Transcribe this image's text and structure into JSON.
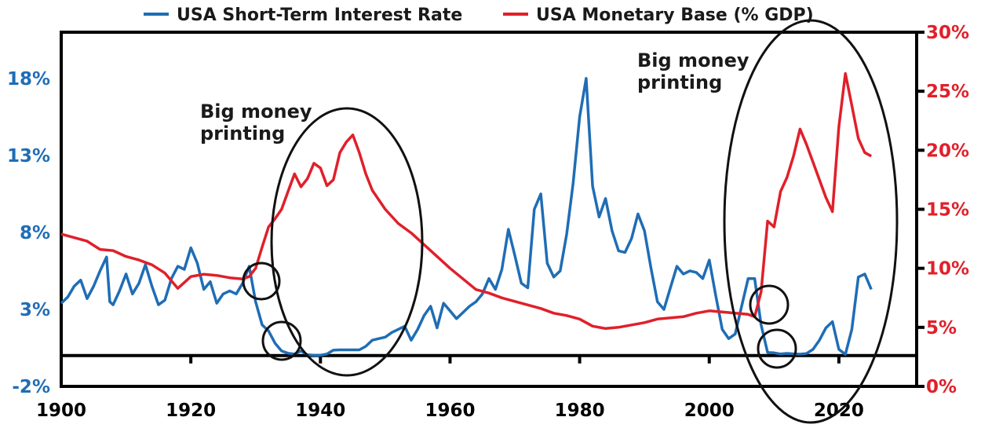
{
  "chart_data": {
    "type": "line",
    "title": "",
    "legend_position": "top",
    "grid": false,
    "xlim": [
      1900,
      2032
    ],
    "x_ticks": [
      1900,
      1920,
      1940,
      1960,
      1980,
      2000,
      2020
    ],
    "x_tick_labels": [
      "1900",
      "1920",
      "1940",
      "1960",
      "1980",
      "2000",
      "2020"
    ],
    "y_left": {
      "lim": [
        -2,
        21
      ],
      "ticks": [
        -2,
        3,
        8,
        13,
        18
      ],
      "tick_labels": [
        "-2%",
        "3%",
        "8%",
        "13%",
        "18%"
      ],
      "color": "#1f6db5"
    },
    "y_right": {
      "lim": [
        0,
        30
      ],
      "ticks": [
        0,
        5,
        10,
        15,
        20,
        25,
        30
      ],
      "tick_labels": [
        "0%",
        "5%",
        "10%",
        "15%",
        "20%",
        "25%",
        "30%"
      ],
      "color": "#e0202a"
    },
    "series": [
      {
        "name": "USA Short-Term Interest Rate",
        "axis": "left",
        "color": "#1f6db5",
        "points": [
          [
            1900,
            3.4
          ],
          [
            1901,
            3.8
          ],
          [
            1902,
            4.5
          ],
          [
            1903,
            4.9
          ],
          [
            1904,
            3.7
          ],
          [
            1905,
            4.5
          ],
          [
            1906,
            5.5
          ],
          [
            1907,
            6.4
          ],
          [
            1907.5,
            3.5
          ],
          [
            1908,
            3.3
          ],
          [
            1909,
            4.2
          ],
          [
            1910,
            5.3
          ],
          [
            1911,
            4.0
          ],
          [
            1912,
            4.7
          ],
          [
            1913,
            5.9
          ],
          [
            1914,
            4.5
          ],
          [
            1915,
            3.3
          ],
          [
            1916,
            3.6
          ],
          [
            1917,
            5.0
          ],
          [
            1918,
            5.8
          ],
          [
            1919,
            5.6
          ],
          [
            1920,
            7.0
          ],
          [
            1921,
            6.0
          ],
          [
            1922,
            4.3
          ],
          [
            1923,
            4.8
          ],
          [
            1924,
            3.4
          ],
          [
            1925,
            4.0
          ],
          [
            1926,
            4.2
          ],
          [
            1927,
            4.0
          ],
          [
            1928,
            4.7
          ],
          [
            1929,
            5.8
          ],
          [
            1930,
            3.5
          ],
          [
            1931,
            2.0
          ],
          [
            1932,
            1.6
          ],
          [
            1933,
            0.8
          ],
          [
            1934,
            0.3
          ],
          [
            1935,
            0.15
          ],
          [
            1936,
            0.1
          ],
          [
            1937,
            0.3
          ],
          [
            1938,
            0.05
          ],
          [
            1939,
            0.02
          ],
          [
            1940,
            0.02
          ],
          [
            1941,
            0.1
          ],
          [
            1942,
            0.35
          ],
          [
            1943,
            0.37
          ],
          [
            1944,
            0.37
          ],
          [
            1945,
            0.37
          ],
          [
            1946,
            0.37
          ],
          [
            1947,
            0.6
          ],
          [
            1948,
            1.0
          ],
          [
            1949,
            1.1
          ],
          [
            1950,
            1.2
          ],
          [
            1951,
            1.5
          ],
          [
            1952,
            1.7
          ],
          [
            1953,
            1.9
          ],
          [
            1954,
            1.0
          ],
          [
            1955,
            1.7
          ],
          [
            1956,
            2.6
          ],
          [
            1957,
            3.2
          ],
          [
            1958,
            1.8
          ],
          [
            1959,
            3.4
          ],
          [
            1960,
            2.9
          ],
          [
            1961,
            2.4
          ],
          [
            1962,
            2.8
          ],
          [
            1963,
            3.2
          ],
          [
            1964,
            3.5
          ],
          [
            1965,
            4.0
          ],
          [
            1966,
            5.0
          ],
          [
            1967,
            4.3
          ],
          [
            1968,
            5.6
          ],
          [
            1969,
            8.2
          ],
          [
            1970,
            6.5
          ],
          [
            1971,
            4.7
          ],
          [
            1972,
            4.4
          ],
          [
            1973,
            9.5
          ],
          [
            1974,
            10.5
          ],
          [
            1975,
            6.0
          ],
          [
            1976,
            5.1
          ],
          [
            1977,
            5.5
          ],
          [
            1978,
            7.9
          ],
          [
            1979,
            11.2
          ],
          [
            1980,
            15.5
          ],
          [
            1981,
            18.0
          ],
          [
            1982,
            11.0
          ],
          [
            1983,
            9.0
          ],
          [
            1984,
            10.2
          ],
          [
            1985,
            8.1
          ],
          [
            1986,
            6.8
          ],
          [
            1987,
            6.7
          ],
          [
            1988,
            7.6
          ],
          [
            1989,
            9.2
          ],
          [
            1990,
            8.1
          ],
          [
            1991,
            5.7
          ],
          [
            1992,
            3.5
          ],
          [
            1993,
            3.0
          ],
          [
            1994,
            4.4
          ],
          [
            1995,
            5.8
          ],
          [
            1996,
            5.3
          ],
          [
            1997,
            5.5
          ],
          [
            1998,
            5.4
          ],
          [
            1999,
            5.0
          ],
          [
            2000,
            6.2
          ],
          [
            2001,
            3.9
          ],
          [
            2002,
            1.7
          ],
          [
            2003,
            1.1
          ],
          [
            2004,
            1.4
          ],
          [
            2005,
            3.2
          ],
          [
            2006,
            5.0
          ],
          [
            2007,
            5.0
          ],
          [
            2008,
            2.0
          ],
          [
            2009,
            0.2
          ],
          [
            2010,
            0.18
          ],
          [
            2011,
            0.1
          ],
          [
            2012,
            0.14
          ],
          [
            2013,
            0.11
          ],
          [
            2014,
            0.09
          ],
          [
            2015,
            0.13
          ],
          [
            2016,
            0.4
          ],
          [
            2017,
            1.0
          ],
          [
            2018,
            1.8
          ],
          [
            2019,
            2.2
          ],
          [
            2020,
            0.4
          ],
          [
            2021,
            0.08
          ],
          [
            2022,
            1.7
          ],
          [
            2023,
            5.1
          ],
          [
            2024,
            5.3
          ],
          [
            2025,
            4.3
          ]
        ]
      },
      {
        "name": "USA Monetary Base (% GDP)",
        "axis": "right",
        "color": "#e0202a",
        "points": [
          [
            1900,
            12.9
          ],
          [
            1902,
            12.6
          ],
          [
            1904,
            12.3
          ],
          [
            1906,
            11.6
          ],
          [
            1908,
            11.5
          ],
          [
            1910,
            11.0
          ],
          [
            1912,
            10.7
          ],
          [
            1914,
            10.3
          ],
          [
            1916,
            9.6
          ],
          [
            1918,
            8.3
          ],
          [
            1919,
            8.8
          ],
          [
            1920,
            9.3
          ],
          [
            1922,
            9.5
          ],
          [
            1924,
            9.4
          ],
          [
            1926,
            9.2
          ],
          [
            1928,
            9.1
          ],
          [
            1929,
            9.3
          ],
          [
            1930,
            10.0
          ],
          [
            1931,
            11.8
          ],
          [
            1932,
            13.5
          ],
          [
            1933,
            14.2
          ],
          [
            1934,
            15.0
          ],
          [
            1935,
            16.5
          ],
          [
            1936,
            18.0
          ],
          [
            1937,
            16.9
          ],
          [
            1938,
            17.6
          ],
          [
            1939,
            18.9
          ],
          [
            1940,
            18.5
          ],
          [
            1941,
            17.0
          ],
          [
            1942,
            17.5
          ],
          [
            1943,
            19.8
          ],
          [
            1944,
            20.7
          ],
          [
            1945,
            21.3
          ],
          [
            1946,
            19.8
          ],
          [
            1947,
            18.0
          ],
          [
            1948,
            16.6
          ],
          [
            1950,
            15.0
          ],
          [
            1952,
            13.8
          ],
          [
            1954,
            13.0
          ],
          [
            1956,
            12.0
          ],
          [
            1958,
            11.0
          ],
          [
            1960,
            10.0
          ],
          [
            1962,
            9.1
          ],
          [
            1964,
            8.2
          ],
          [
            1966,
            7.9
          ],
          [
            1968,
            7.5
          ],
          [
            1970,
            7.2
          ],
          [
            1972,
            6.9
          ],
          [
            1974,
            6.6
          ],
          [
            1976,
            6.2
          ],
          [
            1978,
            6.0
          ],
          [
            1980,
            5.7
          ],
          [
            1982,
            5.1
          ],
          [
            1984,
            4.9
          ],
          [
            1986,
            5.0
          ],
          [
            1988,
            5.2
          ],
          [
            1990,
            5.4
          ],
          [
            1992,
            5.7
          ],
          [
            1994,
            5.8
          ],
          [
            1996,
            5.9
          ],
          [
            1998,
            6.2
          ],
          [
            2000,
            6.4
          ],
          [
            2002,
            6.3
          ],
          [
            2004,
            6.2
          ],
          [
            2006,
            6.1
          ],
          [
            2007,
            5.9
          ],
          [
            2008,
            8.0
          ],
          [
            2009,
            14.0
          ],
          [
            2010,
            13.5
          ],
          [
            2011,
            16.5
          ],
          [
            2012,
            17.7
          ],
          [
            2013,
            19.5
          ],
          [
            2014,
            21.8
          ],
          [
            2015,
            20.5
          ],
          [
            2016,
            19.0
          ],
          [
            2017,
            17.5
          ],
          [
            2018,
            16.0
          ],
          [
            2019,
            14.8
          ],
          [
            2020,
            22.0
          ],
          [
            2021,
            26.5
          ],
          [
            2022,
            23.8
          ],
          [
            2023,
            21.0
          ],
          [
            2024,
            19.8
          ],
          [
            2025,
            19.5
          ]
        ]
      }
    ],
    "annotations": [
      {
        "text": [
          "Big money",
          "printing"
        ],
        "position": "left of 1940s ellipse"
      },
      {
        "text": [
          "Big money",
          "printing"
        ],
        "position": "top of 2010s ellipse"
      }
    ]
  }
}
